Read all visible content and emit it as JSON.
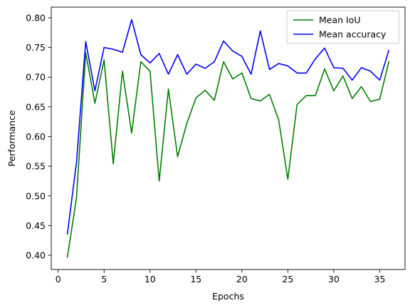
{
  "chart_data": {
    "type": "line",
    "title": "",
    "xlabel": "Epochs",
    "ylabel": "Performance",
    "xlim": [
      -0.75,
      37.75
    ],
    "ylim": [
      0.376,
      0.818
    ],
    "xticks": [
      0,
      5,
      10,
      15,
      20,
      25,
      30,
      35
    ],
    "xtick_labels": [
      "0",
      "5",
      "10",
      "15",
      "20",
      "25",
      "30",
      "35"
    ],
    "yticks": [
      0.4,
      0.45,
      0.5,
      0.55,
      0.6,
      0.65,
      0.7,
      0.75,
      0.8
    ],
    "ytick_labels": [
      "0.40",
      "0.45",
      "0.50",
      "0.55",
      "0.60",
      "0.65",
      "0.70",
      "0.75",
      "0.80"
    ],
    "grid": false,
    "legend_position": "top-right",
    "x": [
      1,
      2,
      3,
      4,
      5,
      6,
      7,
      8,
      9,
      10,
      11,
      12,
      13,
      14,
      15,
      16,
      17,
      18,
      19,
      20,
      21,
      22,
      23,
      24,
      25,
      26,
      27,
      28,
      29,
      30,
      31,
      32,
      33,
      34,
      35,
      36
    ],
    "series": [
      {
        "name": "Mean IoU",
        "color": "#008000",
        "values": [
          0.396,
          0.497,
          0.741,
          0.656,
          0.729,
          0.554,
          0.71,
          0.606,
          0.726,
          0.71,
          0.525,
          0.68,
          0.566,
          0.622,
          0.665,
          0.678,
          0.661,
          0.726,
          0.697,
          0.707,
          0.664,
          0.66,
          0.671,
          0.628,
          0.528,
          0.654,
          0.669,
          0.669,
          0.714,
          0.677,
          0.702,
          0.664,
          0.684,
          0.659,
          0.663,
          0.727
        ]
      },
      {
        "name": "Mean accuracy",
        "color": "#0000ff",
        "values": [
          0.435,
          0.557,
          0.76,
          0.677,
          0.75,
          0.747,
          0.742,
          0.797,
          0.738,
          0.724,
          0.74,
          0.705,
          0.738,
          0.705,
          0.722,
          0.715,
          0.726,
          0.761,
          0.744,
          0.735,
          0.705,
          0.778,
          0.713,
          0.723,
          0.719,
          0.707,
          0.707,
          0.731,
          0.749,
          0.716,
          0.715,
          0.695,
          0.716,
          0.71,
          0.695,
          0.746
        ]
      }
    ]
  }
}
